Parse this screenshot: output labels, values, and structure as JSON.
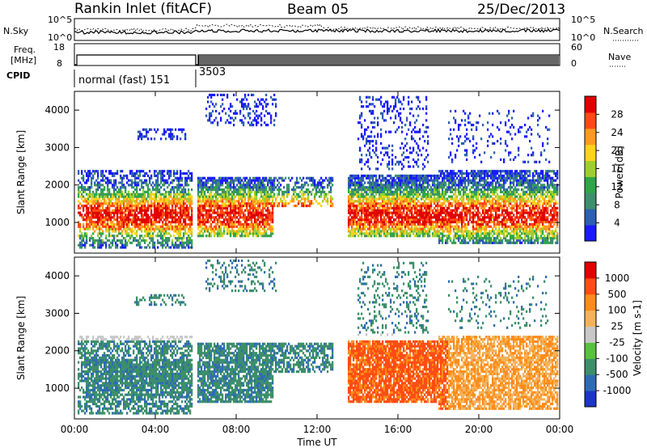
{
  "header": {
    "station": "Rankin Inlet (fitACF)",
    "beam": "Beam 05",
    "date": "25/Dec/2013"
  },
  "top_panel": {
    "left_label": "N.Sky",
    "right_label": "N.Search",
    "left_ticks": [
      "10^5",
      "10^0"
    ],
    "right_ticks": [
      "10^5",
      "10^0"
    ]
  },
  "freq_panel": {
    "left_label_1": "Freq.",
    "left_label_2": "[MHz]",
    "right_label": "Nave",
    "left_ticks": [
      "18",
      "8"
    ],
    "right_ticks": [
      "60",
      "0"
    ]
  },
  "cpid": {
    "label": "CPID",
    "segments": [
      {
        "label": "normal (fast) 151",
        "start": "00:00",
        "end": "06:00"
      },
      {
        "label": "3503",
        "start": "06:00",
        "end": "24:00"
      }
    ]
  },
  "chart_data": [
    {
      "type": "heatmap",
      "name": "power",
      "xlabel": "Time UT",
      "ylabel": "Slant Range [km]",
      "x_ticks": [
        "00:00",
        "04:00",
        "08:00",
        "12:00",
        "16:00",
        "20:00",
        "00:00"
      ],
      "y_ticks": [
        1000,
        2000,
        3000,
        4000
      ],
      "xlim_hours": [
        0,
        24
      ],
      "ylim_km": [
        180,
        4500
      ],
      "colorbar": {
        "label": "Power [dB]",
        "ticks": [
          4,
          8,
          12,
          16,
          20,
          24,
          28
        ],
        "range": [
          0,
          32
        ],
        "colors": [
          "#1a1aff",
          "#2e5fb0",
          "#3f8f6e",
          "#2fa64a",
          "#9fcf2f",
          "#ffd21f",
          "#ff9a1f",
          "#ff4a14",
          "#e00000"
        ]
      }
    },
    {
      "type": "heatmap",
      "name": "velocity",
      "xlabel": "Time UT",
      "ylabel": "Slant Range [km]",
      "x_ticks": [
        "00:00",
        "04:00",
        "08:00",
        "12:00",
        "16:00",
        "20:00",
        "00:00"
      ],
      "y_ticks": [
        1000,
        2000,
        3000,
        4000
      ],
      "xlim_hours": [
        0,
        24
      ],
      "ylim_km": [
        180,
        4500
      ],
      "colorbar": {
        "label": "Velocity [m s-1]",
        "ticks": [
          "1000",
          "500",
          "100",
          "25",
          "-25",
          "-100",
          "-500",
          "-1000"
        ],
        "colors": [
          "#1d35c8",
          "#2e6bb5",
          "#3c8f6a",
          "#58c23e",
          "#c8c8c8",
          "#f4b35a",
          "#ff8c1a",
          "#ff4d14",
          "#e00000"
        ]
      }
    }
  ]
}
